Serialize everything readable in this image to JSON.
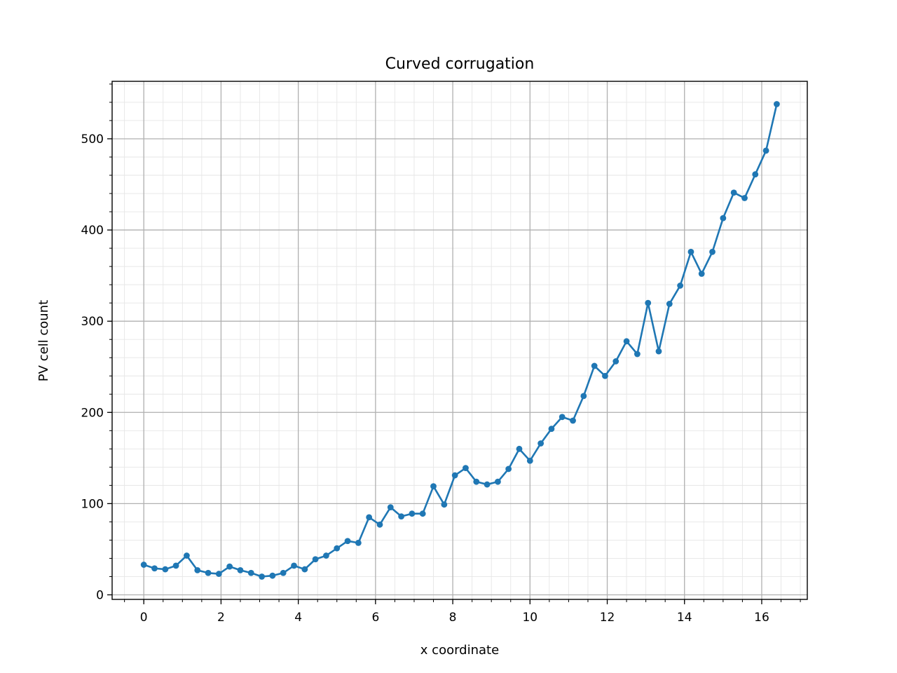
{
  "chart_data": {
    "type": "line",
    "title": "Curved corrugation",
    "xlabel": "x coordinate",
    "ylabel": "PV cell count",
    "xlim": [
      -0.82,
      17.18
    ],
    "ylim": [
      -5,
      563
    ],
    "x_ticks": [
      0,
      2,
      4,
      6,
      8,
      10,
      12,
      14,
      16
    ],
    "y_ticks": [
      0,
      100,
      200,
      300,
      400,
      500
    ],
    "x_minor_step": 0.5,
    "y_minor_step": 20,
    "grid": true,
    "minor_grid": true,
    "line_color": "#1f77b4",
    "marker": "circle",
    "series": [
      {
        "x": [
          0,
          0.278,
          0.556,
          0.833,
          1.111,
          1.389,
          1.667,
          1.944,
          2.222,
          2.5,
          2.778,
          3.056,
          3.333,
          3.611,
          3.889,
          4.167,
          4.444,
          4.722,
          5.0,
          5.278,
          5.556,
          5.833,
          6.111,
          6.389,
          6.667,
          6.944,
          7.222,
          7.5,
          7.778,
          8.056,
          8.333,
          8.611,
          8.889,
          9.167,
          9.444,
          9.722,
          10.0,
          10.278,
          10.556,
          10.833,
          11.111,
          11.389,
          11.667,
          11.944,
          12.222,
          12.5,
          12.778,
          13.056,
          13.333,
          13.611,
          13.889,
          14.167,
          14.444,
          14.722,
          15.0,
          15.278,
          15.556,
          15.833,
          16.111,
          16.389
        ],
        "y": [
          33,
          29,
          28,
          32,
          43,
          27,
          24,
          23,
          31,
          27,
          24,
          20,
          21,
          24,
          32,
          28,
          39,
          43,
          51,
          59,
          57,
          85,
          77,
          96,
          86,
          89,
          89,
          119,
          99,
          131,
          139,
          124,
          121,
          124,
          138,
          160,
          147,
          166,
          182,
          195,
          191,
          218,
          251,
          240,
          256,
          278,
          264,
          320,
          267,
          319,
          339,
          376,
          352,
          376,
          413,
          441,
          435,
          461,
          487,
          538
        ]
      }
    ]
  }
}
